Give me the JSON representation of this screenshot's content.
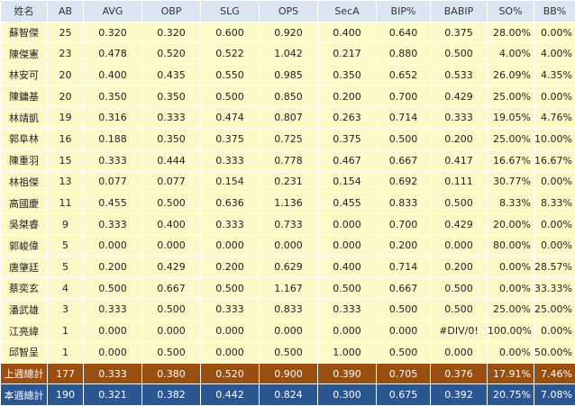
{
  "headers": [
    "姓名",
    "AB",
    "AVG",
    "OBP",
    "SLG",
    "OPS",
    "SecA",
    "BIP%",
    "BABIP",
    "SO%",
    "BB%"
  ],
  "rows": [
    [
      "蘇智傑",
      "25",
      "0.320",
      "0.320",
      "0.600",
      "0.920",
      "0.400",
      "0.640",
      "0.375",
      "28.00%",
      "0.00%"
    ],
    [
      "陳傑憲",
      "23",
      "0.478",
      "0.520",
      "0.522",
      "1.042",
      "0.217",
      "0.880",
      "0.500",
      "4.00%",
      "4.00%"
    ],
    [
      "林安可",
      "20",
      "0.400",
      "0.435",
      "0.550",
      "0.985",
      "0.350",
      "0.652",
      "0.533",
      "26.09%",
      "4.35%"
    ],
    [
      "陳鏞基",
      "20",
      "0.350",
      "0.350",
      "0.500",
      "0.850",
      "0.200",
      "0.700",
      "0.429",
      "25.00%",
      "0.00%"
    ],
    [
      "林靖凱",
      "19",
      "0.316",
      "0.333",
      "0.474",
      "0.807",
      "0.263",
      "0.714",
      "0.333",
      "19.05%",
      "4.76%"
    ],
    [
      "郭阜林",
      "16",
      "0.188",
      "0.350",
      "0.375",
      "0.725",
      "0.375",
      "0.500",
      "0.200",
      "25.00%",
      "10.00%"
    ],
    [
      "陳重羽",
      "15",
      "0.333",
      "0.444",
      "0.333",
      "0.778",
      "0.467",
      "0.667",
      "0.417",
      "16.67%",
      "16.67%"
    ],
    [
      "林祖傑",
      "13",
      "0.077",
      "0.077",
      "0.154",
      "0.231",
      "0.154",
      "0.692",
      "0.111",
      "30.77%",
      "0.00%"
    ],
    [
      "高國慶",
      "11",
      "0.455",
      "0.500",
      "0.636",
      "1.136",
      "0.455",
      "0.833",
      "0.500",
      "8.33%",
      "8.33%"
    ],
    [
      "吳桀睿",
      "9",
      "0.333",
      "0.400",
      "0.333",
      "0.733",
      "0.000",
      "0.700",
      "0.429",
      "20.00%",
      "0.00%"
    ],
    [
      "郭峻偉",
      "5",
      "0.000",
      "0.000",
      "0.000",
      "0.000",
      "0.000",
      "0.200",
      "0.000",
      "80.00%",
      "0.00%"
    ],
    [
      "唐肇廷",
      "5",
      "0.200",
      "0.429",
      "0.200",
      "0.629",
      "0.400",
      "0.714",
      "0.200",
      "0.00%",
      "28.57%"
    ],
    [
      "蔡奕玄",
      "4",
      "0.500",
      "0.667",
      "0.500",
      "1.167",
      "0.500",
      "0.667",
      "0.500",
      "0.00%",
      "33.33%"
    ],
    [
      "潘武雄",
      "3",
      "0.333",
      "0.500",
      "0.333",
      "0.833",
      "0.333",
      "0.500",
      "0.500",
      "25.00%",
      "25.00%"
    ],
    [
      "江亮緯",
      "1",
      "0.000",
      "0.000",
      "0.000",
      "0.000",
      "0.000",
      "0.000",
      "#DIV/0!",
      "100.00%",
      "0.00%"
    ],
    [
      "邱智呈",
      "1",
      "0.000",
      "0.500",
      "0.000",
      "0.500",
      "1.000",
      "0.500",
      "0.000",
      "0.00%",
      "50.00%"
    ]
  ],
  "summary": {
    "previous_week": [
      "上週總計",
      "177",
      "0.333",
      "0.380",
      "0.520",
      "0.900",
      "0.390",
      "0.705",
      "0.376",
      "17.91%",
      "7.46%"
    ],
    "this_week": [
      "本週總計",
      "190",
      "0.321",
      "0.382",
      "0.442",
      "0.824",
      "0.300",
      "0.675",
      "0.392",
      "20.75%",
      "7.08%"
    ]
  },
  "colors": {
    "header_bg": "#dce6f3",
    "row_bg": "#fcfac9",
    "previous_week_bg": "#9a4f12",
    "this_week_bg": "#2b5691"
  }
}
